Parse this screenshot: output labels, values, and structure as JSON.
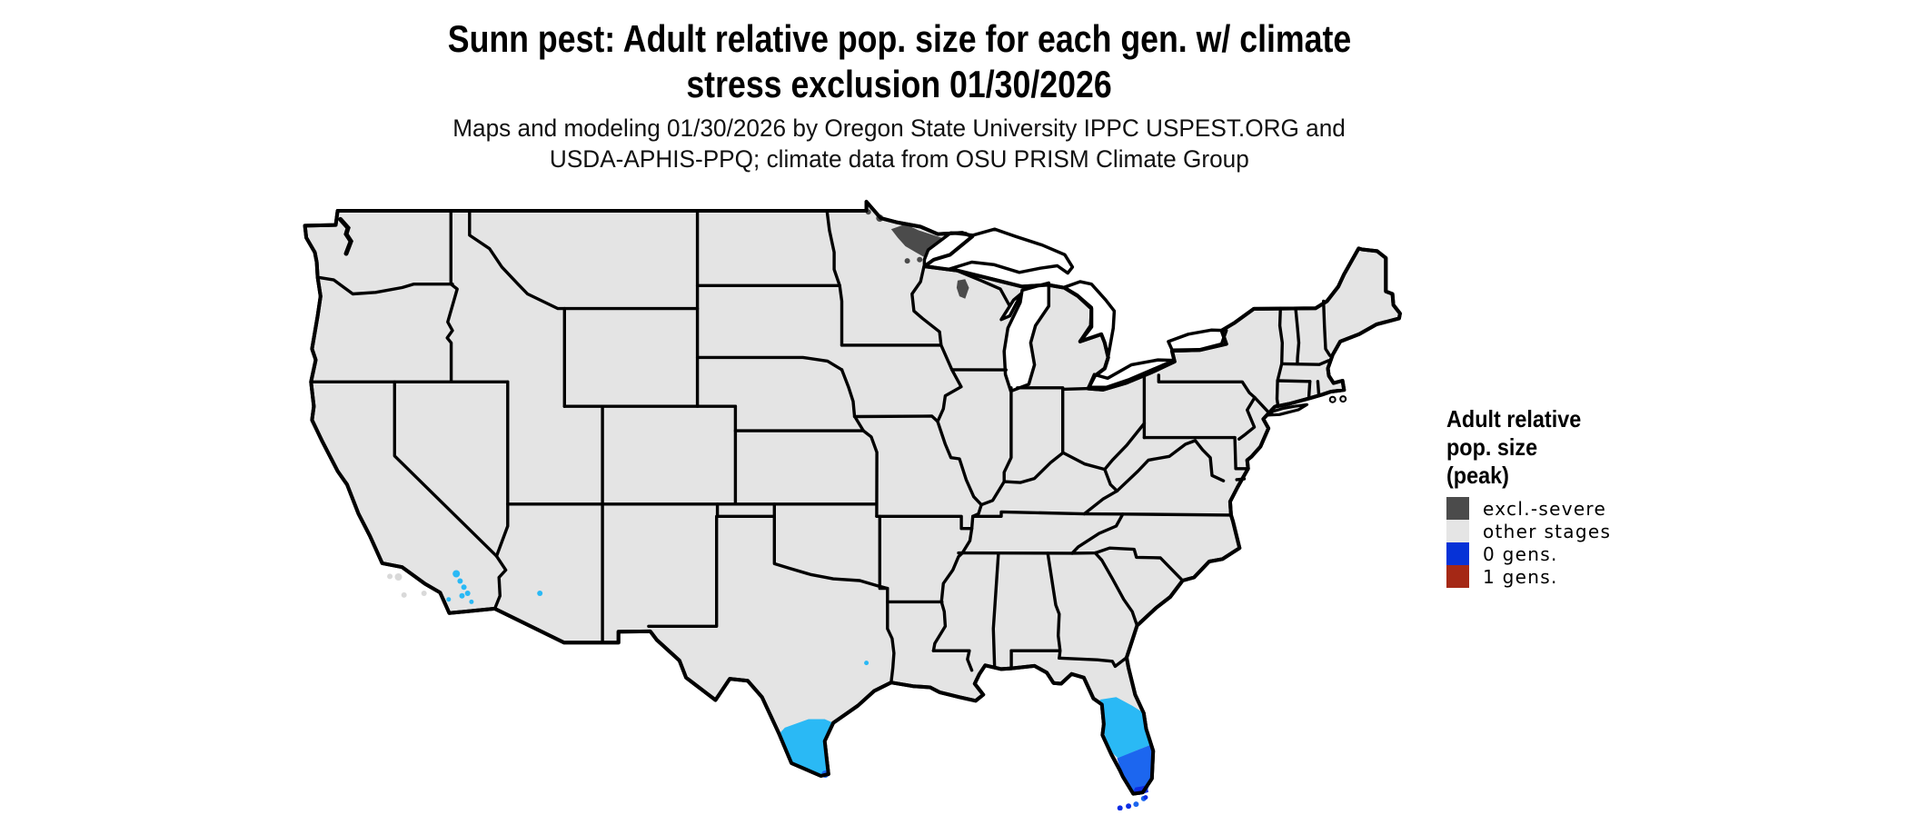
{
  "title": {
    "line1": "Sunn pest: Adult relative pop. size for each gen. w/ climate",
    "line2": "stress exclusion 01/30/2026"
  },
  "subtitle": {
    "line1": "Maps and modeling 01/30/2026 by Oregon State University IPPC USPEST.ORG and",
    "line2": "USDA-APHIS-PPQ; climate data from OSU PRISM Climate Group"
  },
  "legend": {
    "title_line1": "Adult relative",
    "title_line2": "pop. size",
    "title_line3": "(peak)",
    "items": [
      {
        "label": "excl.-severe",
        "color": "#4b4b4b"
      },
      {
        "label": "other stages",
        "color": "#e5e5e5"
      },
      {
        "label": "0 gens.",
        "color": "#0632d7"
      },
      {
        "label": "1 gens.",
        "color": "#a52815"
      }
    ]
  },
  "map_colors": {
    "land": "#e4e4e4",
    "border": "#000000",
    "lake": "#ffffff",
    "excl_severe": "#4b4b4b",
    "pop_low_cyan": "#2ab9f5",
    "pop_mid_blue": "#1c66ef",
    "pop_high_blue": "#0d2de4",
    "island": "#d9d9d9"
  }
}
